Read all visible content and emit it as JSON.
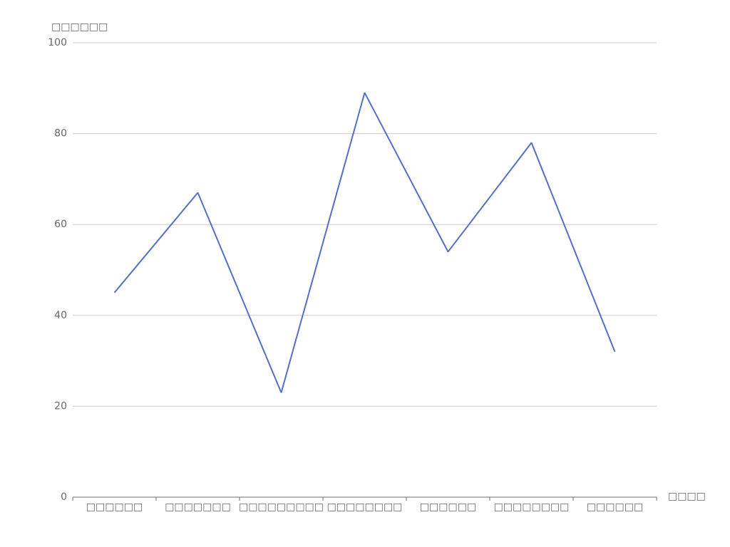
{
  "chart_data": {
    "type": "line",
    "y_axis_label": "□□□□□□",
    "x_axis_label": "□□□□",
    "categories": [
      "□□□□□□",
      "□□□□□□□",
      "□□□□□□□□□",
      "□□□□□□□□",
      "□□□□□□",
      "□□□□□□□□",
      "□□□□□□"
    ],
    "series": [
      {
        "color": "#5470c6",
        "values": [
          45,
          67,
          23,
          89,
          54,
          78,
          32
        ]
      }
    ],
    "ylim": [
      0,
      100
    ],
    "yticks": [
      0,
      20,
      40,
      60,
      80,
      100
    ],
    "grid": true
  }
}
